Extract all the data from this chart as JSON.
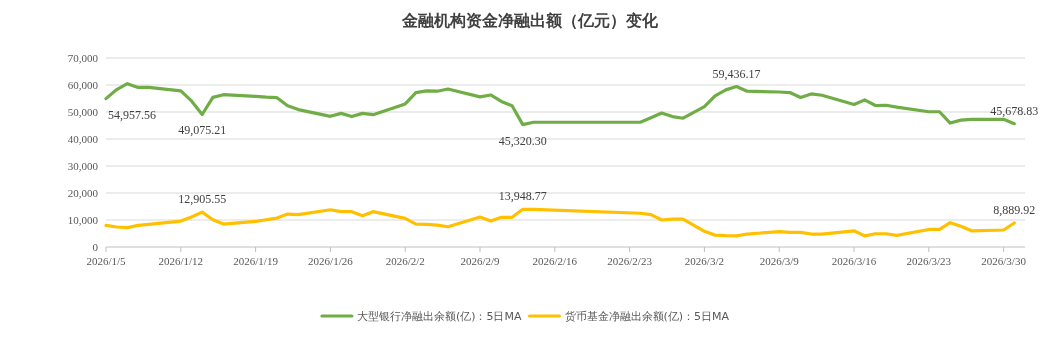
{
  "chart_data": {
    "type": "line",
    "title": "金融机构资金净融出额（亿元）变化",
    "xlim": [
      "2026-01-05",
      "2026-04-01"
    ],
    "xticks": [
      {
        "value": "2026-01-05",
        "label": "2026/1/5"
      },
      {
        "value": "2026-01-12",
        "label": "2026/1/12"
      },
      {
        "value": "2026-01-19",
        "label": "2026/1/19"
      },
      {
        "value": "2026-01-26",
        "label": "2026/1/26"
      },
      {
        "value": "2026-02-02",
        "label": "2026/2/2"
      },
      {
        "value": "2026-02-09",
        "label": "2026/2/9"
      },
      {
        "value": "2026-02-16",
        "label": "2026/2/16"
      },
      {
        "value": "2026-02-23",
        "label": "2026/2/23"
      },
      {
        "value": "2026-03-02",
        "label": "2026/3/2"
      },
      {
        "value": "2026-03-09",
        "label": "2026/3/9"
      },
      {
        "value": "2026-03-16",
        "label": "2026/3/16"
      },
      {
        "value": "2026-03-23",
        "label": "2026/3/23"
      },
      {
        "value": "2026-03-30",
        "label": "2026/3/30"
      }
    ],
    "ylim": [
      0,
      70000
    ],
    "yticks": [
      0,
      {
        "value": 10000,
        "label": "10,000"
      },
      {
        "value": 20000,
        "label": "20,000"
      },
      {
        "value": 30000,
        "label": "30,000"
      },
      {
        "value": 40000,
        "label": "40,000"
      },
      {
        "value": 50000,
        "label": "50,000"
      },
      {
        "value": 60000,
        "label": "60,000"
      },
      {
        "value": 70000,
        "label": "70,000"
      }
    ],
    "grid": "y",
    "legend": "bottom",
    "marker": "none",
    "line_style": "solid",
    "x": [
      "2026-01-05",
      "2026-01-06",
      "2026-01-07",
      "2026-01-08",
      "2026-01-09",
      "2026-01-12",
      "2026-01-13",
      "2026-01-14",
      "2026-01-15",
      "2026-01-16",
      "2026-01-19",
      "2026-01-20",
      "2026-01-21",
      "2026-01-22",
      "2026-01-23",
      "2026-01-26",
      "2026-01-27",
      "2026-01-28",
      "2026-01-29",
      "2026-01-30",
      "2026-02-02",
      "2026-02-03",
      "2026-02-04",
      "2026-02-05",
      "2026-02-06",
      "2026-02-09",
      "2026-02-10",
      "2026-02-11",
      "2026-02-12",
      "2026-02-13",
      "2026-02-14",
      "2026-02-24",
      "2026-02-25",
      "2026-02-26",
      "2026-02-27",
      "2026-02-28",
      "2026-03-02",
      "2026-03-03",
      "2026-03-04",
      "2026-03-05",
      "2026-03-06",
      "2026-03-09",
      "2026-03-10",
      "2026-03-11",
      "2026-03-12",
      "2026-03-13",
      "2026-03-16",
      "2026-03-17",
      "2026-03-18",
      "2026-03-19",
      "2026-03-20",
      "2026-03-23",
      "2026-03-24",
      "2026-03-25",
      "2026-03-26",
      "2026-03-27",
      "2026-03-30",
      "2026-03-31"
    ],
    "series": [
      {
        "name": "大型银行净融出余额(亿)：5日MA",
        "color": "#70ad47",
        "values": [
          54957.56,
          58300,
          60500,
          59100,
          59100,
          57800,
          54100,
          49075.21,
          55400,
          56400,
          55800,
          55500,
          55300,
          52300,
          50900,
          48400,
          49500,
          48300,
          49500,
          49000,
          53000,
          57200,
          57800,
          57700,
          58500,
          55600,
          56300,
          53900,
          52300,
          45320.3,
          46200,
          46200,
          47900,
          49600,
          48300,
          47700,
          52000,
          56000,
          58200,
          59436.17,
          57700,
          57400,
          57200,
          55400,
          56700,
          56200,
          52800,
          54500,
          52400,
          52500,
          51800,
          50100,
          50100,
          45900,
          47000,
          47300,
          47300,
          45678.83
        ]
      },
      {
        "name": "货币基金净融出余额(亿)：5日MA",
        "color": "#ffc000",
        "values": [
          8000,
          7400,
          7200,
          8000,
          8400,
          9600,
          11100,
          12905.55,
          10100,
          8500,
          9500,
          10100,
          10700,
          12200,
          12000,
          13800,
          13100,
          13100,
          11600,
          13100,
          10600,
          8500,
          8400,
          8100,
          7500,
          11100,
          9600,
          11000,
          11000,
          13948.77,
          13900,
          12500,
          12000,
          10000,
          10300,
          10300,
          5800,
          4400,
          4200,
          4100,
          4800,
          5700,
          5400,
          5400,
          4800,
          4800,
          6000,
          4100,
          4900,
          4900,
          4300,
          6500,
          6500,
          9000,
          7700,
          6000,
          6300,
          8889.92
        ]
      }
    ],
    "annotations": [
      {
        "text": "54,957.56",
        "x": "2026-01-05",
        "y": 54957.56
      },
      {
        "text": "49,075.21",
        "x": "2026-01-14",
        "y": 49075.21
      },
      {
        "text": "45,320.30",
        "x": "2026-02-13",
        "y": 45320.3
      },
      {
        "text": "59,436.17",
        "x": "2026-03-05",
        "y": 59436.17
      },
      {
        "text": "45,678.83",
        "x": "2026-03-31",
        "y": 45678.83
      },
      {
        "text": "12,905.55",
        "x": "2026-01-14",
        "y": 12905.55
      },
      {
        "text": "13,948.77",
        "x": "2026-02-13",
        "y": 13948.77
      },
      {
        "text": "8,889.92",
        "x": "2026-03-31",
        "y": 8889.92
      }
    ]
  }
}
